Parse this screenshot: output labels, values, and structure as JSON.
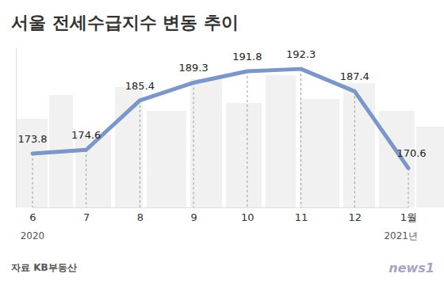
{
  "chart_data": {
    "type": "line",
    "title": "서울 전세수급지수 변동 추이",
    "categories": [
      "6",
      "7",
      "8",
      "9",
      "10",
      "11",
      "12",
      "1월"
    ],
    "sublabels": [
      "2020",
      null,
      null,
      null,
      null,
      null,
      null,
      "2021년"
    ],
    "values": [
      173.8,
      174.6,
      185.4,
      189.3,
      191.8,
      192.3,
      187.4,
      170.6
    ],
    "color": "#7b96c9",
    "ylim": [
      162,
      197
    ],
    "data_labels": true,
    "tick_labels": "x",
    "source": "자료 KB부동산",
    "credit": "news1"
  }
}
